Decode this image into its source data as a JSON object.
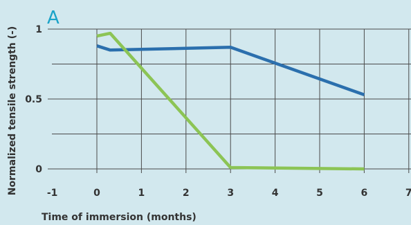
{
  "chart_data": {
    "type": "line",
    "panel_label": "A",
    "xlabel": "Time of immersion (months)",
    "ylabel": "Normalized tensile strength (-)",
    "xlim": [
      -1,
      7
    ],
    "ylim": [
      0,
      1
    ],
    "x_ticks": [
      -1,
      0,
      1,
      2,
      3,
      4,
      5,
      6,
      7
    ],
    "x_tick_labels": [
      "-1",
      "0",
      "1",
      "2",
      "3",
      "4",
      "5",
      "6",
      "7"
    ],
    "y_ticks": [
      0,
      0.5,
      1
    ],
    "y_tick_labels": [
      "0",
      "0.5",
      "1"
    ],
    "grid": true,
    "series": [
      {
        "color": "#2b6fad",
        "points": [
          [
            0,
            0.88
          ],
          [
            0.3,
            0.85
          ],
          [
            3,
            0.87
          ],
          [
            6,
            0.53
          ]
        ]
      },
      {
        "color": "#8cc455",
        "points": [
          [
            0,
            0.95
          ],
          [
            0.3,
            0.97
          ],
          [
            3,
            0.01
          ],
          [
            6,
            0.0
          ]
        ]
      }
    ],
    "colors": {
      "background": "#d2e8ee",
      "grid": "#4a4a4a",
      "text": "#333333",
      "panel_label": "#1aa3c8"
    }
  }
}
